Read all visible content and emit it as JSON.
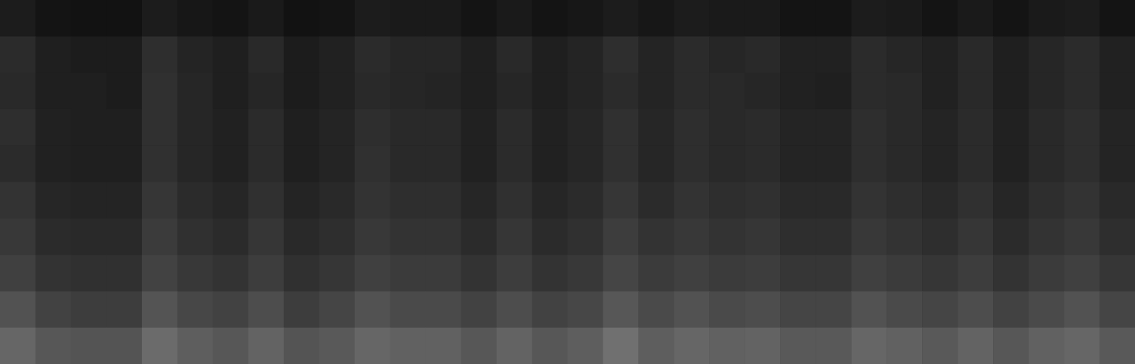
{
  "chart_data": {
    "type": "heatmap",
    "tick_labels": false,
    "grid": false,
    "xlim": [
      0,
      32
    ],
    "ylim": [
      0,
      10
    ],
    "zlim": [
      0,
      100
    ],
    "cells": [
      [
        11,
        8,
        7,
        7,
        11,
        9,
        8,
        10,
        7,
        8,
        11,
        10,
        10,
        8,
        10,
        8,
        9,
        11,
        9,
        11,
        10,
        10,
        8,
        8,
        11,
        10,
        8,
        10,
        8,
        10,
        11,
        8
      ],
      [
        17,
        12,
        11,
        11,
        18,
        14,
        12,
        16,
        11,
        13,
        17,
        15,
        15,
        12,
        16,
        12,
        14,
        18,
        14,
        17,
        15,
        16,
        13,
        13,
        17,
        15,
        13,
        16,
        12,
        15,
        17,
        13
      ],
      [
        16,
        12,
        12,
        11,
        19,
        15,
        12,
        15,
        11,
        13,
        16,
        15,
        14,
        12,
        15,
        12,
        14,
        17,
        14,
        17,
        16,
        15,
        13,
        12,
        17,
        16,
        13,
        16,
        12,
        15,
        17,
        13
      ],
      [
        18,
        13,
        12,
        12,
        19,
        15,
        13,
        17,
        12,
        14,
        18,
        16,
        16,
        13,
        17,
        13,
        15,
        19,
        15,
        18,
        16,
        17,
        14,
        14,
        18,
        16,
        14,
        17,
        13,
        16,
        18,
        14
      ],
      [
        17,
        13,
        12,
        12,
        19,
        15,
        13,
        17,
        12,
        14,
        19,
        16,
        16,
        13,
        17,
        13,
        15,
        19,
        15,
        18,
        16,
        17,
        14,
        14,
        18,
        16,
        14,
        17,
        13,
        16,
        18,
        14
      ],
      [
        20,
        15,
        14,
        14,
        21,
        17,
        15,
        19,
        14,
        16,
        20,
        18,
        18,
        15,
        19,
        15,
        17,
        21,
        17,
        20,
        18,
        19,
        16,
        16,
        20,
        18,
        16,
        19,
        15,
        18,
        20,
        16
      ],
      [
        22,
        17,
        16,
        16,
        23,
        19,
        17,
        21,
        16,
        18,
        22,
        20,
        20,
        17,
        21,
        17,
        19,
        24,
        20,
        22,
        20,
        21,
        18,
        18,
        22,
        20,
        18,
        21,
        17,
        20,
        22,
        18
      ],
      [
        25,
        20,
        19,
        19,
        26,
        22,
        20,
        24,
        19,
        21,
        25,
        23,
        23,
        20,
        24,
        20,
        22,
        27,
        23,
        25,
        23,
        24,
        21,
        21,
        25,
        23,
        21,
        24,
        20,
        23,
        25,
        21
      ],
      [
        32,
        26,
        24,
        24,
        33,
        28,
        26,
        30,
        24,
        27,
        32,
        29,
        29,
        26,
        30,
        26,
        28,
        34,
        29,
        32,
        29,
        30,
        27,
        27,
        32,
        29,
        27,
        30,
        26,
        29,
        32,
        27
      ],
      [
        40,
        34,
        33,
        33,
        42,
        37,
        34,
        39,
        33,
        35,
        40,
        38,
        38,
        34,
        39,
        34,
        37,
        44,
        37,
        40,
        38,
        39,
        35,
        35,
        40,
        38,
        35,
        39,
        34,
        38,
        40,
        35
      ]
    ]
  }
}
